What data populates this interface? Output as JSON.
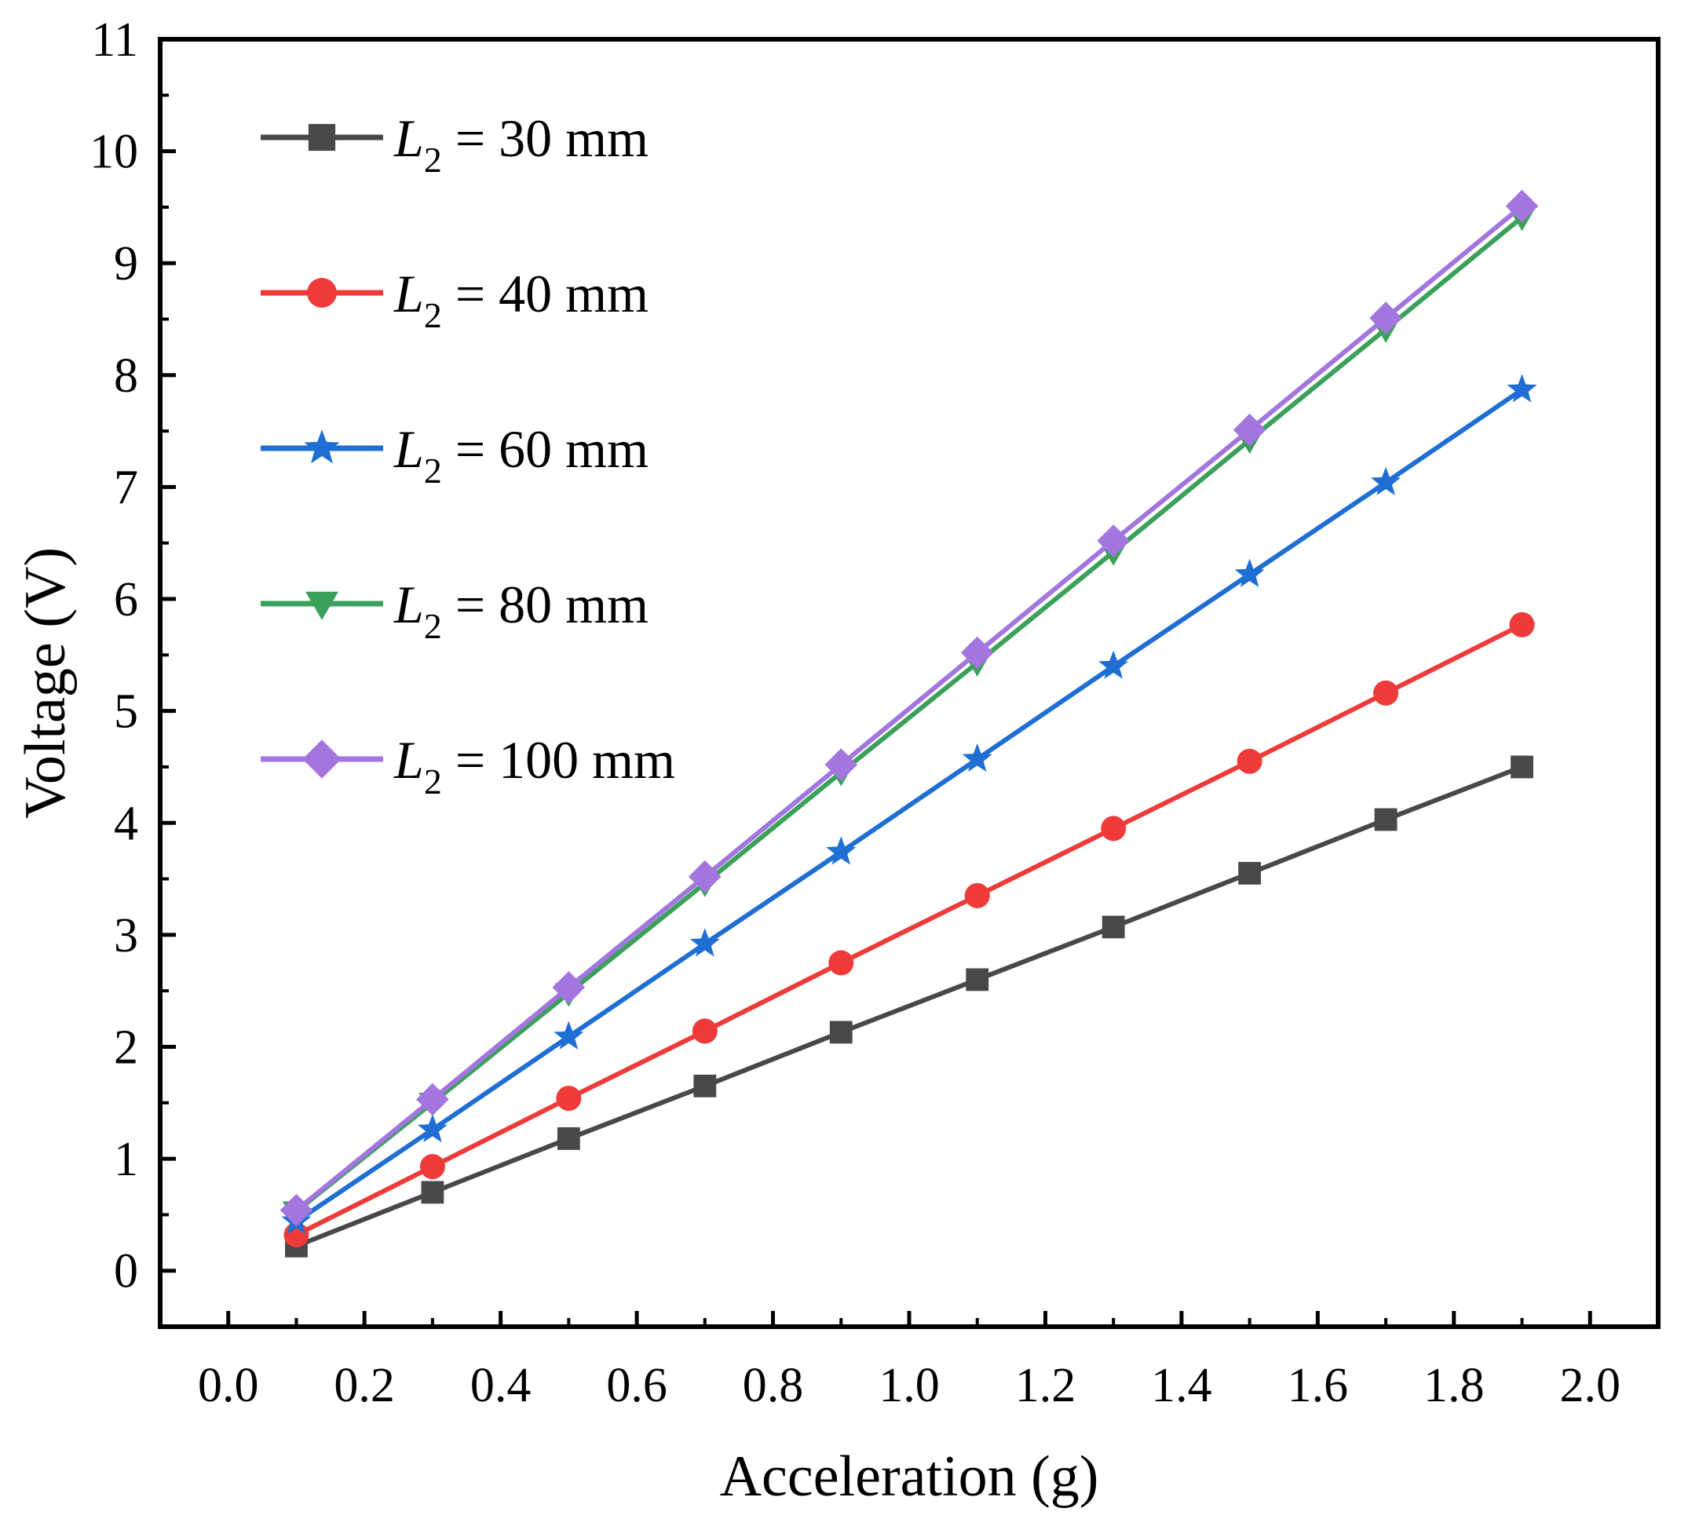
{
  "chart_data": {
    "type": "line",
    "title": "",
    "xlabel": "Acceleration (g)",
    "ylabel": "Voltage (V)",
    "xlim": [
      -0.1,
      2.1
    ],
    "ylim": [
      -0.5,
      11
    ],
    "xticks": [
      0.0,
      0.2,
      0.4,
      0.6,
      0.8,
      1.0,
      1.2,
      1.4,
      1.6,
      1.8,
      2.0
    ],
    "xtick_labels": [
      "0.0",
      "0.2",
      "0.4",
      "0.6",
      "0.8",
      "1.0",
      "1.2",
      "1.4",
      "1.6",
      "1.8",
      "2.0"
    ],
    "yticks": [
      0,
      1,
      2,
      3,
      4,
      5,
      6,
      7,
      8,
      9,
      10,
      11
    ],
    "ytick_labels": [
      "0",
      "1",
      "2",
      "3",
      "4",
      "5",
      "6",
      "7",
      "8",
      "9",
      "10",
      "11"
    ],
    "grid": false,
    "legend_position": "top-left",
    "x": [
      0.1,
      0.3,
      0.5,
      0.7,
      0.9,
      1.1,
      1.3,
      1.5,
      1.7,
      1.9
    ],
    "series": [
      {
        "name": "L2 = 30 mm",
        "legend": {
          "var": "L",
          "sub": "2",
          "rest": " = 30 mm"
        },
        "color": "#484848",
        "marker": "square",
        "values": [
          0.22,
          0.7,
          1.18,
          1.65,
          2.13,
          2.6,
          3.07,
          3.55,
          4.03,
          4.5
        ]
      },
      {
        "name": "L2 = 40 mm",
        "legend": {
          "var": "L",
          "sub": "2",
          "rest": " = 40 mm"
        },
        "color": "#ef3a3a",
        "marker": "circle",
        "values": [
          0.32,
          0.93,
          1.54,
          2.14,
          2.75,
          3.35,
          3.95,
          4.55,
          5.16,
          5.77
        ]
      },
      {
        "name": "L2 = 60 mm",
        "legend": {
          "var": "L",
          "sub": "2",
          "rest": " = 60 mm"
        },
        "color": "#1f6ed4",
        "marker": "star",
        "values": [
          0.44,
          1.26,
          2.09,
          2.92,
          3.74,
          4.57,
          5.4,
          6.22,
          7.04,
          7.87
        ]
      },
      {
        "name": "L2 = 80 mm",
        "legend": {
          "var": "L",
          "sub": "2",
          "rest": " = 80 mm"
        },
        "color": "#3aa05a",
        "marker": "triangle-down",
        "values": [
          0.53,
          1.5,
          2.48,
          3.46,
          4.45,
          5.43,
          6.42,
          7.42,
          8.41,
          9.41
        ]
      },
      {
        "name": "L2 = 100 mm",
        "legend": {
          "var": "L",
          "sub": "2",
          "rest": " = 100 mm"
        },
        "color": "#a276de",
        "marker": "diamond",
        "values": [
          0.54,
          1.53,
          2.53,
          3.52,
          4.52,
          5.52,
          6.52,
          7.51,
          8.51,
          9.51
        ]
      }
    ]
  }
}
